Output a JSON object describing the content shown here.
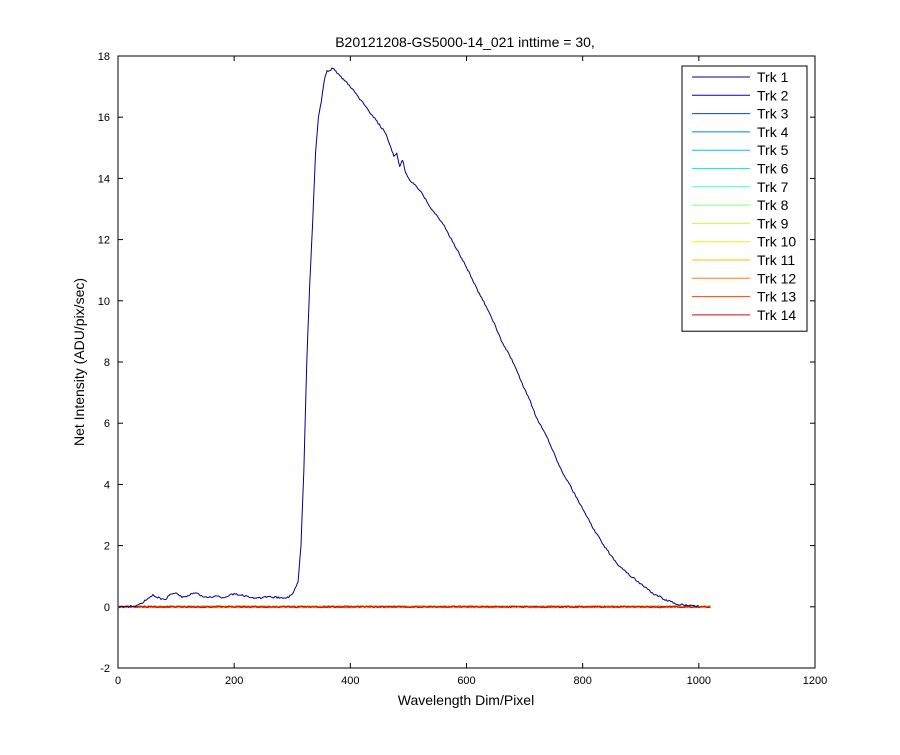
{
  "chart_data": {
    "type": "line",
    "title": "B20121208-GS5000-14_021 inttime = 30,",
    "xlabel": "Wavelength Dim/Pixel",
    "ylabel": "Net Intensity (ADU/pix/sec)",
    "xlim": [
      0,
      1200
    ],
    "ylim": [
      -2,
      18
    ],
    "xticks": [
      0,
      200,
      400,
      600,
      800,
      1000,
      1200
    ],
    "yticks": [
      -2,
      0,
      2,
      4,
      6,
      8,
      10,
      12,
      14,
      16,
      18
    ],
    "grid": false,
    "legend_position": "top-right",
    "series": [
      {
        "name": "Trk 1",
        "color": "#00008f",
        "x": [
          0,
          30,
          40,
          50,
          60,
          70,
          80,
          90,
          100,
          110,
          120,
          130,
          140,
          150,
          160,
          170,
          180,
          200,
          220,
          240,
          260,
          280,
          290,
          300,
          305,
          310,
          315,
          320,
          325,
          330,
          335,
          340,
          345,
          350,
          355,
          360,
          365,
          370,
          375,
          380,
          390,
          400,
          420,
          440,
          460,
          470,
          475,
          480,
          485,
          490,
          495,
          500,
          520,
          540,
          560,
          580,
          600,
          620,
          640,
          660,
          680,
          700,
          710,
          720,
          740,
          760,
          780,
          800,
          820,
          840,
          860,
          880,
          900,
          920,
          940,
          960,
          980,
          1000
        ],
        "y": [
          0,
          0.02,
          0.1,
          0.25,
          0.38,
          0.3,
          0.22,
          0.4,
          0.48,
          0.32,
          0.35,
          0.45,
          0.4,
          0.3,
          0.33,
          0.35,
          0.3,
          0.42,
          0.35,
          0.28,
          0.32,
          0.3,
          0.28,
          0.4,
          0.6,
          0.8,
          2.0,
          4.5,
          8.0,
          10.5,
          12.5,
          14.8,
          16.0,
          16.5,
          17.2,
          17.5,
          17.55,
          17.6,
          17.5,
          17.4,
          17.2,
          17.0,
          16.5,
          16.0,
          15.5,
          15.0,
          14.7,
          14.8,
          14.4,
          14.6,
          14.2,
          14.0,
          13.6,
          13.0,
          12.5,
          11.8,
          11.1,
          10.3,
          9.6,
          8.7,
          8.0,
          7.1,
          6.7,
          6.2,
          5.5,
          4.6,
          3.9,
          3.2,
          2.5,
          1.9,
          1.4,
          1.05,
          0.75,
          0.45,
          0.25,
          0.1,
          0.04,
          0.02
        ]
      },
      {
        "name": "Trk 2",
        "color": "#0000bf",
        "x": [
          0,
          1020
        ],
        "y": [
          0,
          0
        ]
      },
      {
        "name": "Trk 3",
        "color": "#0040ff",
        "x": [
          0,
          1020
        ],
        "y": [
          0,
          0
        ]
      },
      {
        "name": "Trk 4",
        "color": "#0080ff",
        "x": [
          0,
          1020
        ],
        "y": [
          0,
          0
        ]
      },
      {
        "name": "Trk 5",
        "color": "#00bfff",
        "x": [
          0,
          1020
        ],
        "y": [
          0,
          0
        ]
      },
      {
        "name": "Trk 6",
        "color": "#10efef",
        "x": [
          0,
          1020
        ],
        "y": [
          0,
          0
        ]
      },
      {
        "name": "Trk 7",
        "color": "#40ffbf",
        "x": [
          0,
          1020
        ],
        "y": [
          0,
          0
        ]
      },
      {
        "name": "Trk 8",
        "color": "#80ff80",
        "x": [
          0,
          1020
        ],
        "y": [
          0,
          0
        ]
      },
      {
        "name": "Trk 9",
        "color": "#bfff40",
        "x": [
          0,
          1020
        ],
        "y": [
          0,
          0
        ]
      },
      {
        "name": "Trk 10",
        "color": "#efef10",
        "x": [
          0,
          1020
        ],
        "y": [
          0,
          0
        ]
      },
      {
        "name": "Trk 11",
        "color": "#ffbf00",
        "x": [
          0,
          1020
        ],
        "y": [
          0,
          0
        ]
      },
      {
        "name": "Trk 12",
        "color": "#ff8000",
        "x": [
          0,
          1020
        ],
        "y": [
          0,
          0
        ]
      },
      {
        "name": "Trk 13",
        "color": "#ff4000",
        "x": [
          0,
          1020
        ],
        "y": [
          0,
          0
        ]
      },
      {
        "name": "Trk 14",
        "color": "#df0000",
        "x": [
          0,
          1020
        ],
        "y": [
          0,
          0
        ]
      }
    ]
  }
}
